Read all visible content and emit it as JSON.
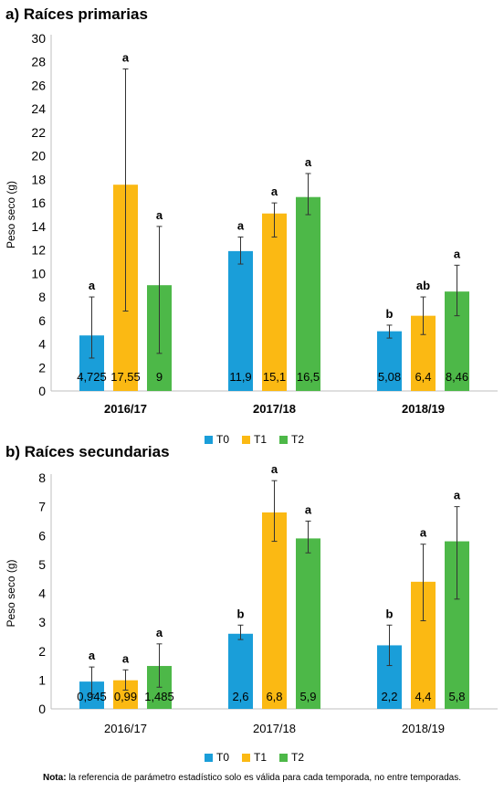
{
  "colors": {
    "T0": "#1a9ed9",
    "T1": "#fbb913",
    "T2": "#4db848"
  },
  "legend": [
    {
      "name": "T0",
      "color": "#1a9ed9"
    },
    {
      "name": "T1",
      "color": "#fbb913"
    },
    {
      "name": "T2",
      "color": "#4db848"
    }
  ],
  "note": {
    "label": "Nota:",
    "text": "la referencia de parámetro estadístico solo es válida para cada temporada, no entre temporadas."
  },
  "chart_data": [
    {
      "type": "bar",
      "title": "a) Raíces primarias",
      "ylabel": "Peso seco (g)",
      "ylim": [
        0,
        30
      ],
      "yticks": [
        0,
        2,
        4,
        6,
        8,
        10,
        12,
        14,
        16,
        18,
        20,
        22,
        24,
        26,
        28,
        30
      ],
      "grid": false,
      "legend": "bottom-center",
      "categories": [
        "2016/17",
        "2017/18",
        "2018/19"
      ],
      "categories_bold": true,
      "series": [
        {
          "name": "T0",
          "values": [
            4.725,
            11.9,
            5.08
          ],
          "labels": [
            "4,725",
            "11,9",
            "5,08"
          ],
          "err_low": [
            2.8,
            10.8,
            4.5
          ],
          "err_high": [
            8.0,
            13.1,
            5.6
          ],
          "letters": [
            "a",
            "a",
            "b"
          ]
        },
        {
          "name": "T1",
          "values": [
            17.55,
            15.1,
            6.4
          ],
          "labels": [
            "17,55",
            "15,1",
            "6,4"
          ],
          "err_low": [
            6.8,
            13.1,
            4.8
          ],
          "err_high": [
            27.4,
            16.0,
            8.0
          ],
          "letters": [
            "a",
            "a",
            "ab"
          ]
        },
        {
          "name": "T2",
          "values": [
            9,
            16.5,
            8.46
          ],
          "labels": [
            "9",
            "16,5",
            "8,46"
          ],
          "err_low": [
            3.2,
            15.0,
            6.4
          ],
          "err_high": [
            14.0,
            18.5,
            10.7
          ],
          "letters": [
            "a",
            "a",
            "a"
          ]
        }
      ]
    },
    {
      "type": "bar",
      "title": "b) Raíces secundarias",
      "ylabel": "Peso seco (g)",
      "ylim": [
        0,
        8
      ],
      "yticks": [
        0,
        1,
        2,
        3,
        4,
        5,
        6,
        7,
        8
      ],
      "grid": false,
      "legend": "bottom-center",
      "categories": [
        "2016/17",
        "2017/18",
        "2018/19"
      ],
      "categories_bold": false,
      "series": [
        {
          "name": "T0",
          "values": [
            0.945,
            2.6,
            2.2
          ],
          "labels": [
            "0,945",
            "2,6",
            "2,2"
          ],
          "err_low": [
            0.5,
            2.4,
            1.5
          ],
          "err_high": [
            1.45,
            2.9,
            2.9
          ],
          "letters": [
            "a",
            "b",
            "b"
          ]
        },
        {
          "name": "T1",
          "values": [
            0.99,
            6.8,
            4.4
          ],
          "labels": [
            "0,99",
            "6,8",
            "4,4"
          ],
          "err_low": [
            0.65,
            5.8,
            3.05
          ],
          "err_high": [
            1.35,
            7.9,
            5.7
          ],
          "letters": [
            "a",
            "a",
            "a"
          ]
        },
        {
          "name": "T2",
          "values": [
            1.485,
            5.9,
            5.8
          ],
          "labels": [
            "1,485",
            "5,9",
            "5,8"
          ],
          "err_low": [
            0.75,
            5.4,
            3.8
          ],
          "err_high": [
            2.25,
            6.5,
            7.0
          ],
          "letters": [
            "a",
            "a",
            "a"
          ]
        }
      ]
    }
  ]
}
